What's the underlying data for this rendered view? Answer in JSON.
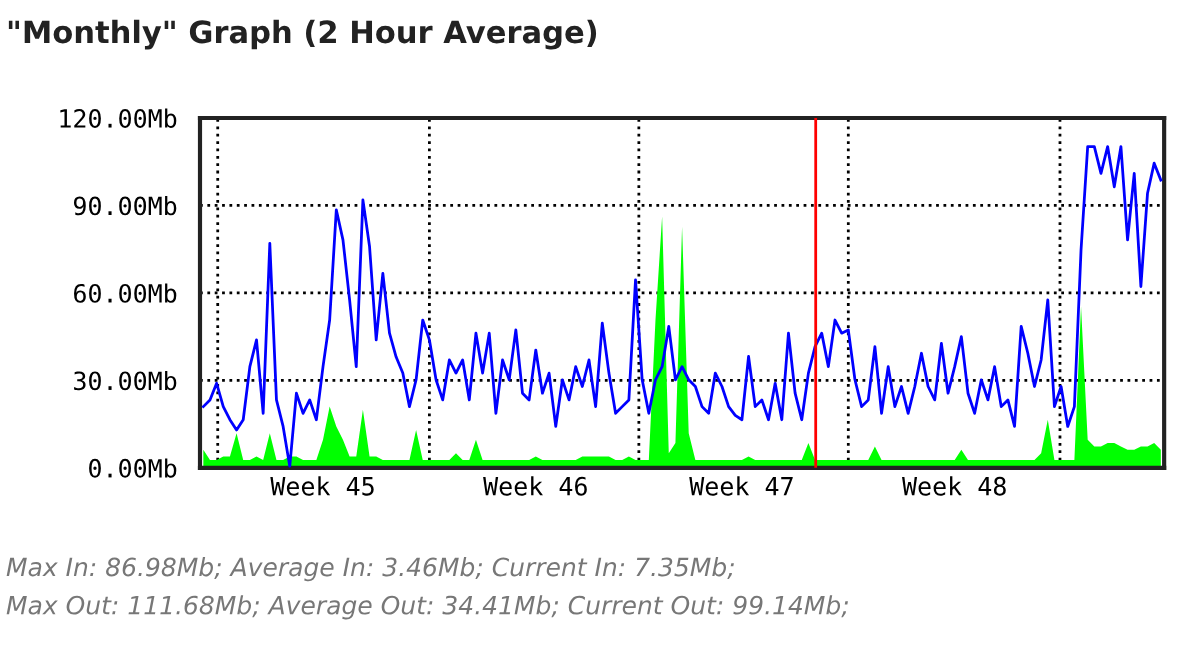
{
  "chart_data": {
    "type": "line",
    "title": "\"Monthly\" Graph (2 Hour Average)",
    "categories": [
      null,
      null,
      null,
      null,
      null,
      null,
      null,
      null,
      null,
      null,
      null,
      null,
      null,
      null,
      null,
      null,
      null,
      null,
      "Week 45",
      null,
      null,
      null,
      null,
      null,
      null,
      null,
      null,
      null,
      null,
      null,
      null,
      null,
      null,
      null,
      null,
      null,
      null,
      null,
      null,
      null,
      null,
      null,
      null,
      null,
      null,
      null,
      null,
      null,
      null,
      null,
      "Week 46",
      null,
      null,
      null,
      null,
      null,
      null,
      null,
      null,
      null,
      null,
      null,
      null,
      null,
      null,
      null,
      null,
      null,
      null,
      null,
      null,
      null,
      null,
      null,
      null,
      null,
      null,
      null,
      null,
      null,
      null,
      "Week 47",
      null,
      null,
      null,
      null,
      null,
      null,
      null,
      null,
      null,
      null,
      null,
      null,
      null,
      null,
      null,
      null,
      null,
      null,
      null,
      null,
      null,
      null,
      null,
      null,
      null,
      null,
      null,
      null,
      null,
      null,
      null,
      "Week 48",
      null,
      null,
      null,
      null,
      null,
      null,
      null,
      null,
      null,
      null,
      null,
      null,
      null,
      null,
      null,
      null,
      null,
      null,
      null,
      null,
      null,
      null,
      null,
      null,
      null,
      null,
      null,
      null,
      null,
      null,
      null
    ],
    "ylim": [
      0,
      120
    ],
    "yticks": [
      {
        "value": 0,
        "label": "0.00Mb"
      },
      {
        "value": 30,
        "label": "30.00Mb"
      },
      {
        "value": 60,
        "label": "60.00Mb"
      },
      {
        "value": 90,
        "label": "90.00Mb"
      },
      {
        "value": 120,
        "label": "120.00Mb"
      }
    ],
    "grid": "y",
    "series": [
      {
        "type": "area",
        "color": "#00ff00",
        "values": [
          6.2,
          2.7,
          2.7,
          3.9,
          3.9,
          11.9,
          2.7,
          2.7,
          3.9,
          2.7,
          11.9,
          2.7,
          2.7,
          3.9,
          3.9,
          2.7,
          2.7,
          2.7,
          9.6,
          21.0,
          14.2,
          9.6,
          3.9,
          3.9,
          19.9,
          3.9,
          3.9,
          2.7,
          2.7,
          2.7,
          2.7,
          2.7,
          13.0,
          2.7,
          2.7,
          2.7,
          2.7,
          2.7,
          5.0,
          2.7,
          2.7,
          9.6,
          2.7,
          2.7,
          2.7,
          2.7,
          2.7,
          2.7,
          2.7,
          2.7,
          3.9,
          2.7,
          2.7,
          2.7,
          2.7,
          2.7,
          2.7,
          3.9,
          3.9,
          3.9,
          3.9,
          3.9,
          2.7,
          2.7,
          3.9,
          2.7,
          2.7,
          2.7,
          50.7,
          86.2,
          5.0,
          8.5,
          82.7,
          11.9,
          2.7,
          2.7,
          2.7,
          2.7,
          2.7,
          2.7,
          2.7,
          2.7,
          3.9,
          2.7,
          2.7,
          2.7,
          2.7,
          2.7,
          2.7,
          2.7,
          2.7,
          8.5,
          2.7,
          2.7,
          2.7,
          2.7,
          2.7,
          2.7,
          2.7,
          2.7,
          2.7,
          7.3,
          2.7,
          2.7,
          2.7,
          2.7,
          2.7,
          2.7,
          2.7,
          2.7,
          2.7,
          2.7,
          2.7,
          2.7,
          6.2,
          2.7,
          2.7,
          2.7,
          2.7,
          2.7,
          2.7,
          2.7,
          2.7,
          2.7,
          2.7,
          2.7,
          5.0,
          16.5,
          2.7,
          2.7,
          2.7,
          2.7,
          55.3,
          9.6,
          7.3,
          7.3,
          8.5,
          8.5,
          7.3,
          6.2,
          6.2,
          7.3,
          7.3,
          8.5,
          6.2
        ]
      },
      {
        "color": "#0000ff",
        "values": [
          21.0,
          23.3,
          29.0,
          21.0,
          16.5,
          13.0,
          16.5,
          34.7,
          43.9,
          18.7,
          77.0,
          23.3,
          14.2,
          0.5,
          25.6,
          18.7,
          23.3,
          16.5,
          34.7,
          50.7,
          88.5,
          78.2,
          57.6,
          34.7,
          91.9,
          75.9,
          43.9,
          66.7,
          46.2,
          38.0,
          32.5,
          21.0,
          30.2,
          50.7,
          43.9,
          30.2,
          23.3,
          37.0,
          32.5,
          37.0,
          23.3,
          46.2,
          32.5,
          46.2,
          18.7,
          37.0,
          30.2,
          47.3,
          25.6,
          23.3,
          40.4,
          25.6,
          32.5,
          14.2,
          30.2,
          23.3,
          34.7,
          27.9,
          37.0,
          21.0,
          49.6,
          32.5,
          18.7,
          21.0,
          23.3,
          64.5,
          30.2,
          18.7,
          30.2,
          34.7,
          48.5,
          30.2,
          34.7,
          30.2,
          27.9,
          21.0,
          18.7,
          32.5,
          27.9,
          21.0,
          18.0,
          16.5,
          38.2,
          21.0,
          23.3,
          16.5,
          29.0,
          16.5,
          46.2,
          25.6,
          16.5,
          32.5,
          41.6,
          46.2,
          34.7,
          50.7,
          46.2,
          47.3,
          30.2,
          21.0,
          23.3,
          41.6,
          18.7,
          34.7,
          21.0,
          27.9,
          18.7,
          27.9,
          39.3,
          27.9,
          23.3,
          42.7,
          25.6,
          34.7,
          45.0,
          25.6,
          18.7,
          30.2,
          23.3,
          34.7,
          21.0,
          23.3,
          14.2,
          48.5,
          39.3,
          27.9,
          37.0,
          57.6,
          21.0,
          27.9,
          14.2,
          21.0,
          74.7,
          110.2,
          110.2,
          101.0,
          110.2,
          96.4,
          110.2,
          78.2,
          101.0,
          62.2,
          94.2,
          104.5,
          98.7
        ]
      }
    ],
    "annotations": [
      "Max In: 86.98Mb; Average In: 3.46Mb; Current In: 7.35Mb;",
      "Max Out: 111.68Mb; Average Out: 34.41Mb; Current Out: 99.14Mb;"
    ]
  }
}
